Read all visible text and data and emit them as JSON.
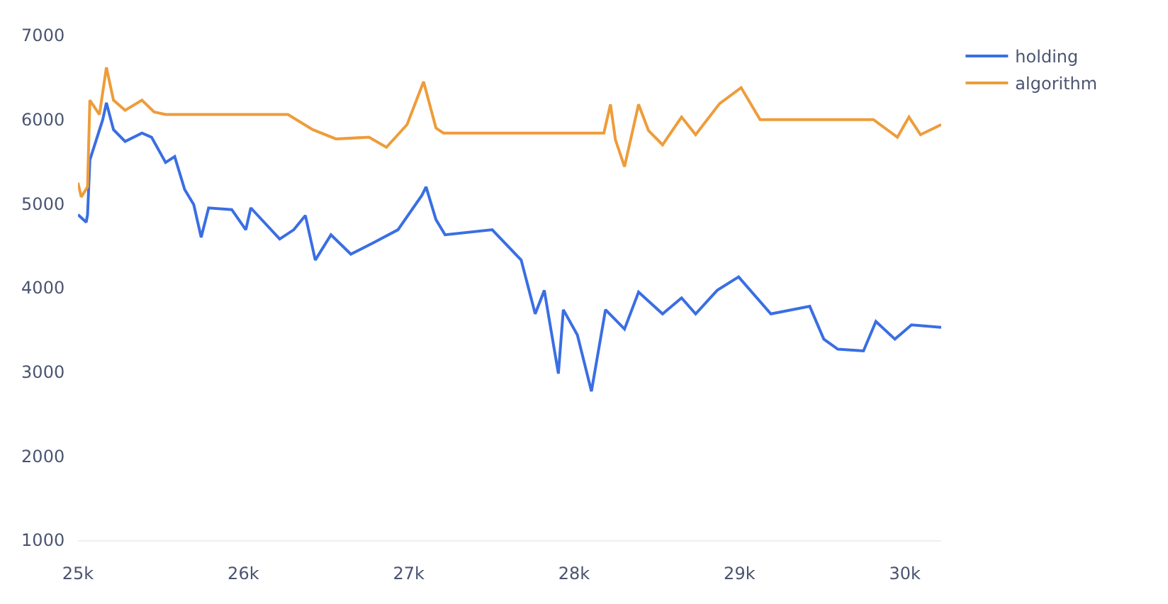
{
  "chart_data": {
    "type": "line",
    "legend": "top right",
    "marker": "none",
    "line_style": "solid",
    "xlim": [
      25000,
      30220
    ],
    "ylim": [
      1000,
      7000
    ],
    "xticks": [
      {
        "value": 25000,
        "label": "25k"
      },
      {
        "value": 26000,
        "label": "26k"
      },
      {
        "value": 27000,
        "label": "27k"
      },
      {
        "value": 28000,
        "label": "28k"
      },
      {
        "value": 29000,
        "label": "29k"
      },
      {
        "value": 30000,
        "label": "30k"
      }
    ],
    "yticks": [
      1000,
      2000,
      3000,
      4000,
      5000,
      6000,
      7000
    ],
    "series": [
      {
        "name": "holding",
        "color": "#3a6ee3",
        "x": [
          25000,
          25050,
          25058,
          25072,
          25150,
          25172,
          25215,
          25285,
          25387,
          25445,
          25530,
          25585,
          25645,
          25700,
          25745,
          25790,
          25930,
          26015,
          26045,
          26220,
          26305,
          26375,
          26435,
          26530,
          26650,
          26790,
          26935,
          27080,
          27105,
          27165,
          27220,
          27505,
          27680,
          27765,
          27820,
          27905,
          27935,
          28020,
          28105,
          28190,
          28305,
          28390,
          28535,
          28650,
          28735,
          28865,
          28995,
          29190,
          29425,
          29510,
          29595,
          29750,
          29825,
          29940,
          30040,
          30220
        ],
        "values": [
          4870,
          4780,
          4870,
          5520,
          6000,
          6200,
          5880,
          5740,
          5840,
          5790,
          5490,
          5560,
          5170,
          4990,
          4600,
          4950,
          4930,
          4690,
          4950,
          4580,
          4690,
          4860,
          4330,
          4630,
          4400,
          4540,
          4690,
          5100,
          5200,
          4810,
          4630,
          4690,
          4330,
          3690,
          3970,
          2980,
          3740,
          3440,
          2770,
          3740,
          3510,
          3950,
          3690,
          3880,
          3690,
          3970,
          4130,
          3690,
          3780,
          3390,
          3270,
          3250,
          3600,
          3390,
          3560,
          3530
        ]
      },
      {
        "name": "algorithm",
        "color": "#ee9c3a",
        "x": [
          25000,
          25020,
          25058,
          25072,
          25130,
          25172,
          25215,
          25285,
          25387,
          25460,
          25530,
          26270,
          26420,
          26560,
          26760,
          26865,
          26990,
          27090,
          27165,
          27210,
          28180,
          28220,
          28250,
          28305,
          28390,
          28450,
          28535,
          28650,
          28735,
          28880,
          29010,
          29125,
          29810,
          29955,
          30025,
          30095,
          30220
        ],
        "values": [
          5250,
          5080,
          5200,
          6230,
          6060,
          6620,
          6230,
          6110,
          6230,
          6090,
          6060,
          6060,
          5880,
          5770,
          5790,
          5670,
          5940,
          6450,
          5900,
          5840,
          5840,
          6180,
          5760,
          5440,
          6180,
          5870,
          5700,
          6030,
          5820,
          6190,
          6380,
          6000,
          6000,
          5790,
          6030,
          5820,
          5940
        ]
      }
    ]
  }
}
